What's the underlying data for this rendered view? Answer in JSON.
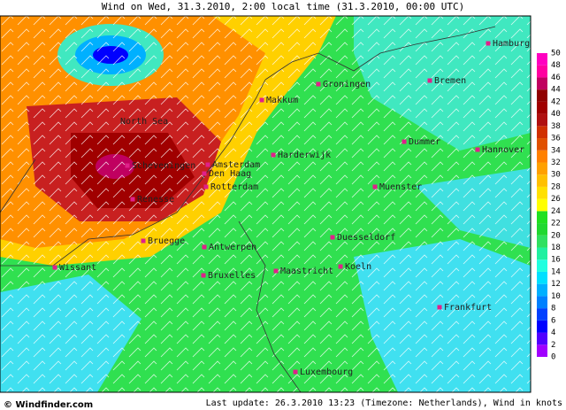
{
  "header": {
    "title": "Wind on Wed, 31.3.2010, 2:00 local time (31.3.2010, 00:00 UTC)"
  },
  "places": [
    "Hamburg",
    "Bremen",
    "Groningen",
    "Makkum",
    "North Sea",
    "Harderwijk",
    "Dummer",
    "Hannover",
    "Scheveningen",
    "Amsterdam",
    "Den Haag",
    "Rotterdam",
    "Muenster",
    "Renesse",
    "Duesseldorf",
    "Bruegge",
    "Antwerpen",
    "Wissant",
    "Koeln",
    "Maastricht",
    "Bruxelles",
    "Frankfurt",
    "Luxembourg"
  ],
  "legend": {
    "ticks": [
      0,
      2,
      4,
      6,
      8,
      10,
      12,
      14,
      16,
      18,
      20,
      22,
      24,
      26,
      28,
      30,
      32,
      34,
      36,
      38,
      40,
      42,
      44,
      46,
      48,
      50
    ],
    "colors": [
      "#a000ff",
      "#5000ff",
      "#0000ff",
      "#0040ff",
      "#0080ff",
      "#00b0ff",
      "#00e0ff",
      "#20ffe0",
      "#20f0a0",
      "#30e060",
      "#20d830",
      "#20e020",
      "#ffff00",
      "#ffe000",
      "#ffc000",
      "#ffa000",
      "#ff8000",
      "#e05000",
      "#d03000",
      "#b01010",
      "#a00000",
      "#900000",
      "#c00060",
      "#ff00a0",
      "#ff00c0"
    ]
  },
  "footer": {
    "brand": "© Windfinder.com",
    "note": "Last update: 26.3.2010 13:23 (Timezone: Netherlands), Wind in knots"
  }
}
